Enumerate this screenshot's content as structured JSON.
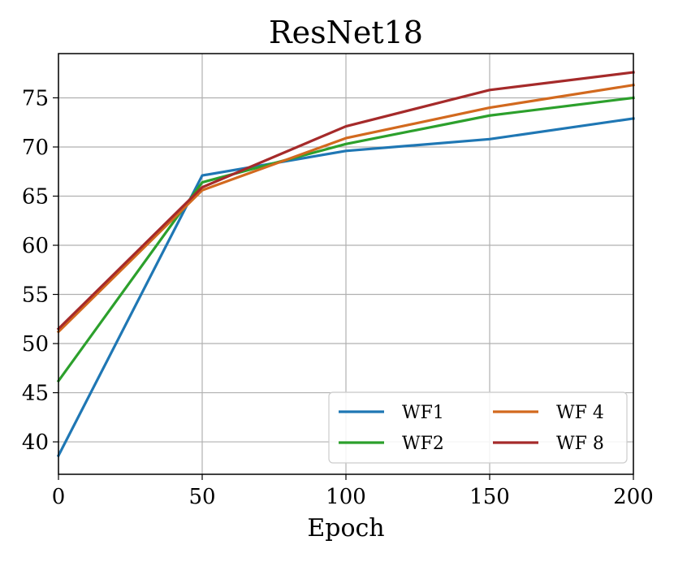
{
  "chart_data": {
    "type": "line",
    "title": "ResNet18",
    "xlabel": "Epoch",
    "ylabel": "",
    "x": [
      0,
      50,
      100,
      150,
      200
    ],
    "xlim": [
      0,
      200
    ],
    "ylim": [
      36.7,
      79.5
    ],
    "xticks": [
      0,
      50,
      100,
      150,
      200
    ],
    "yticks": [
      40,
      45,
      50,
      55,
      60,
      65,
      70,
      75
    ],
    "grid": true,
    "legend_position": "lower-right",
    "legend_columns": 2,
    "series": [
      {
        "name": "WF1",
        "color": "#1f77b4",
        "values": [
          38.6,
          67.1,
          69.6,
          70.8,
          72.9
        ]
      },
      {
        "name": "WF2",
        "color": "#2ca02c",
        "values": [
          46.2,
          66.4,
          70.3,
          73.2,
          75.0
        ]
      },
      {
        "name": "WF 4",
        "color": "#d2691e",
        "values": [
          51.2,
          65.6,
          70.9,
          74.0,
          76.3
        ]
      },
      {
        "name": "WF 8",
        "color": "#a52a2a",
        "values": [
          51.5,
          65.9,
          72.1,
          75.8,
          77.6
        ]
      }
    ]
  }
}
